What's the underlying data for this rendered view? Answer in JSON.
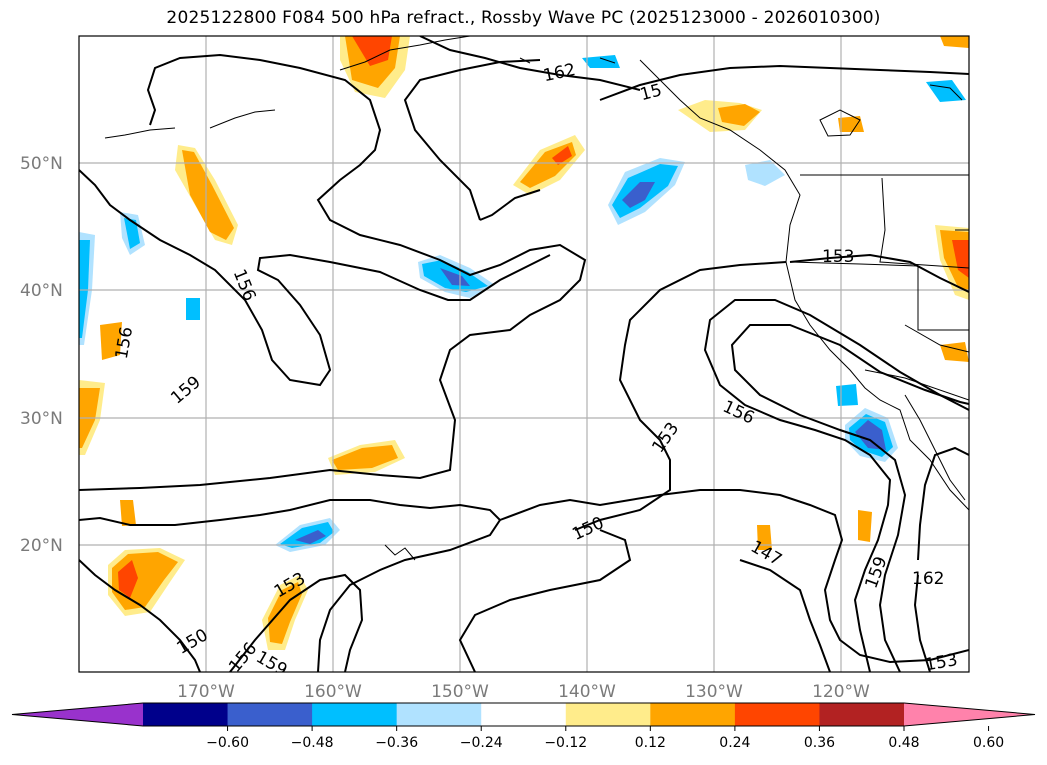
{
  "title": "2025122800 F084 500 hPa refract., Rossby Wave PC (2025123000 - 2026010300)",
  "lat_labels": [
    "50°N",
    "40°N",
    "30°N",
    "20°N"
  ],
  "lon_labels": [
    "170°W",
    "160°W",
    "150°W",
    "140°W",
    "130°W",
    "120°W"
  ],
  "colorbar": {
    "tick_labels": [
      "−0.60",
      "−0.48",
      "−0.36",
      "−0.24",
      "−0.12",
      "0.12",
      "0.24",
      "0.36",
      "0.48",
      "0.60"
    ],
    "colors": [
      "#9932cc",
      "#00008b",
      "#3a5fcd",
      "#00bfff",
      "#b0e2ff",
      "#ffffff",
      "#ffec8b",
      "#ffa500",
      "#ff4500",
      "#b22222",
      "#ff82ab"
    ]
  },
  "contour_labels": [
    "162",
    "15",
    "156",
    "156",
    "159",
    "153",
    "156",
    "153",
    "150",
    "147",
    "159",
    "162",
    "153",
    "150",
    "156",
    "159",
    "153"
  ]
}
